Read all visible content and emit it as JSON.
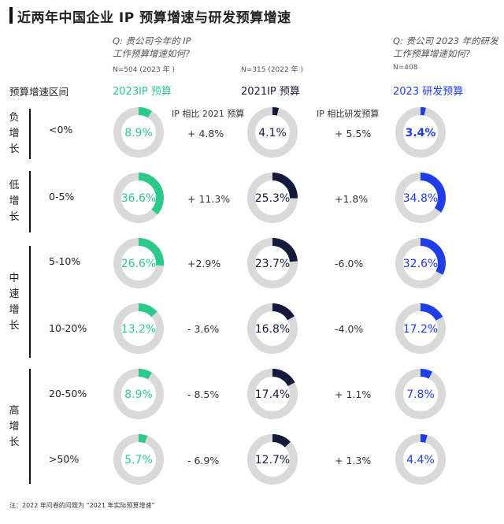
{
  "title": "近两年中国企业 IP 预算增速与研发预算增速",
  "questions": {
    "q1_line1": "Q: 贵公司今年的 IP",
    "q1_line2": "工作预算增速如何?",
    "n1": "N=504 (2023 年 )",
    "n2": "N=315 (2022 年 )",
    "q2_line1": "Q: 贵公司 2023 年的研发",
    "q2_line2": "工作预算增速如何?",
    "n3": "N=408"
  },
  "headers": {
    "range_col": "预算增速区间",
    "col1": "2023IP 预算",
    "col2": "2021IP 预算",
    "col3": "2023 研发预算",
    "cmp1": "IP 相比 2021 预算",
    "cmp2": "IP 相比研发预算"
  },
  "groups": [
    {
      "label": "负增长"
    },
    {
      "label": "低增长"
    },
    {
      "label": "中速增长"
    },
    {
      "label": "高增长"
    }
  ],
  "colors": {
    "col1": "#2dc98a",
    "col2": "#141a3c",
    "col3": "#1f3ee8",
    "track": "#d9d9d9"
  },
  "chart_data": {
    "type": "donut",
    "categories": [
      "<0%",
      "0-5%",
      "5-10%",
      "10-20%",
      "20-50%",
      ">50%"
    ],
    "series": [
      {
        "name": "2023IP 预算",
        "values": [
          8.9,
          36.6,
          26.6,
          13.2,
          8.9,
          5.7
        ],
        "labels": [
          "8.9%",
          "36.6%",
          "26.6%",
          "13.2%",
          "8.9%",
          "5.7%"
        ]
      },
      {
        "name": "2021IP 预算",
        "values": [
          4.1,
          25.3,
          23.7,
          16.8,
          17.4,
          12.7
        ],
        "labels": [
          "4.1%",
          "25.3%",
          "23.7%",
          "16.8%",
          "17.4%",
          "12.7%"
        ]
      },
      {
        "name": "2023 研发预算",
        "values": [
          3.4,
          34.8,
          32.6,
          17.2,
          7.8,
          4.4
        ],
        "labels": [
          "3.4%",
          "34.8%",
          "32.6%",
          "17.2%",
          "7.8%",
          "4.4%"
        ]
      }
    ],
    "ip_vs_2021": [
      "+ 4.8%",
      "+ 11.3%",
      "+2.9%",
      "- 3.6%",
      "- 8.5%",
      "- 6.9%"
    ],
    "ip_vs_rd": [
      "+ 5.5%",
      "+1.8%",
      "-6.0%",
      "-4.0%",
      "+ 1.1%",
      "+ 1.3%"
    ]
  },
  "note": "注：2022 年问卷的问题为 “2021 年实际预算增速”"
}
